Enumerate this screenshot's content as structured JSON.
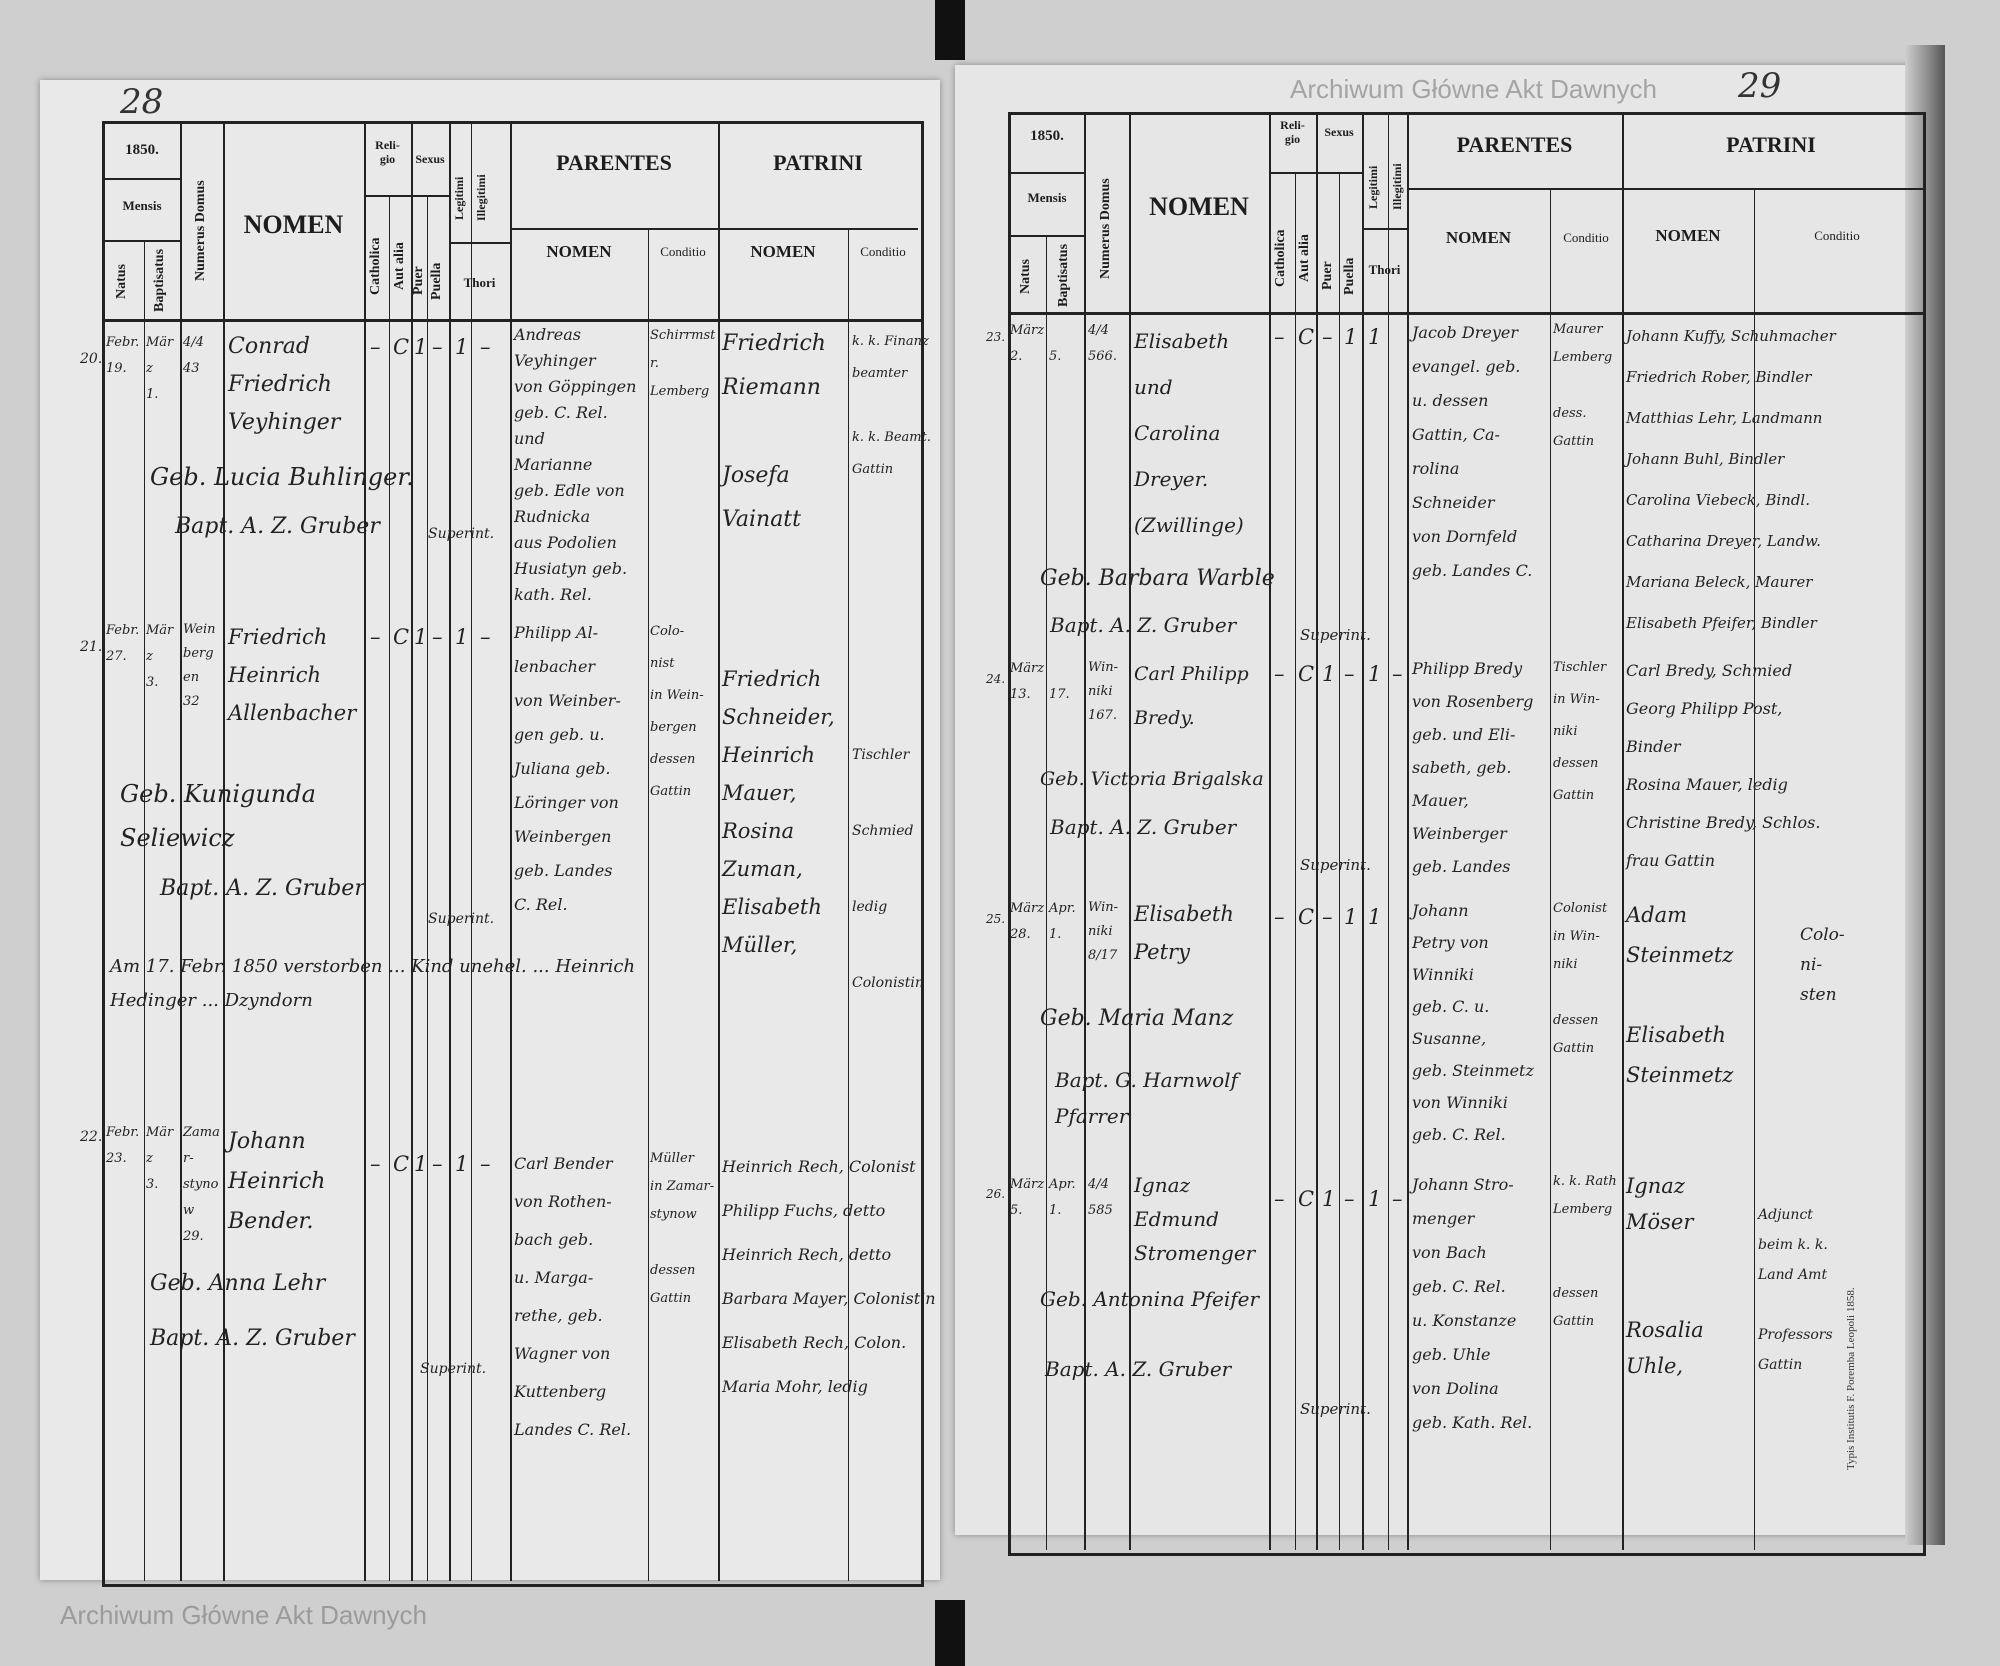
{
  "left_page": {
    "page_number": "28",
    "header": {
      "year": "1850.",
      "mensis": "Mensis",
      "natus": "Natus",
      "baptisatus": "Baptisatus",
      "numerus_domus": "Numerus Domus",
      "nomen": "NOMEN",
      "religio": "Reli-\ngio",
      "catholica": "Catholica",
      "aut_alia": "Aut alia",
      "sexus": "Sexus",
      "puer": "Puer",
      "puella": "Puella",
      "legitimi": "Legitimi",
      "illegitimi": "Illegitimi",
      "thori": "Thori",
      "parentes": "PARENTES",
      "parentes_nomen": "NOMEN",
      "parentes_conditio": "Conditio",
      "patrini": "PATRINI",
      "patrini_nomen": "NOMEN",
      "patrini_conditio": "Conditio"
    },
    "entries": [
      {
        "no": "20.",
        "natus": "Febr.\n19.",
        "baptisatus": "März\n1.",
        "domus": "4/4\n43",
        "nomen": "Conrad\nFriedrich\nVeyhinger",
        "catholica": "–",
        "aut_alia": "C",
        "puer": "1",
        "puella": "–",
        "legitimi": "1",
        "illegitimi": "–",
        "parentes_nomen": "Andreas\nVeyhinger\nvon Göppingen\ngeb. C. Rel.\nund\nMarianne\ngeb. Edle von\nRudnicka\naus Podolien\nHusiatyn geb.\nkath. Rel.",
        "parentes_conditio": "Schirrmstr.\nLemberg",
        "patrini_nomen": "Friedrich\nRiemann\n\nJosefa\nVainatt",
        "patrini_conditio": "k. k. Finanz\nbeamter\n\nk. k. Beamt.\nGattin",
        "obstetrix": "Geb. Lucia Buhlinger.",
        "baptizans": "Bapt. A. Z. Gruber",
        "signum": "Superint."
      },
      {
        "no": "21.",
        "natus": "Febr.\n27.",
        "baptisatus": "März\n3.",
        "domus": "Weinbergen\n32",
        "nomen": "Friedrich\nHeinrich\nAllenbacher",
        "catholica": "–",
        "aut_alia": "C",
        "puer": "1",
        "puella": "–",
        "legitimi": "1",
        "illegitimi": "–",
        "parentes_nomen": "Philipp Al-\nlenbacher\nvon Weinber-\ngen geb. u.\nJuliana geb.\nLöringer von\nWeinbergen\ngeb. Landes\nC. Rel.",
        "parentes_conditio": "Colo-\nnist\nin Wein-\nbergen\ndessen\nGattin",
        "patrini_nomen": "Friedrich\nSchneider,\nHeinrich\nMauer,\nRosina\nZuman,\nElisabeth\nMüller,",
        "patrini_conditio": "\n\nTischler\n\nSchmied\n\nledig\n\nColonistin",
        "obstetrix": "Geb. Kunigunda\nSeliewicz",
        "baptizans": "Bapt. A. Z. Gruber",
        "signum": "Superint."
      },
      {
        "no": "22.",
        "natus": "Febr.\n23.",
        "baptisatus": "März\n3.",
        "domus": "Zamar-\nstynow\n29.",
        "nomen": "Johann\nHeinrich\nBender.",
        "catholica": "–",
        "aut_alia": "C",
        "puer": "1",
        "puella": "–",
        "legitimi": "1",
        "illegitimi": "–",
        "parentes_nomen": "Carl Bender\nvon Rothen-\nbach geb.\nu. Marga-\nrethe, geb.\nWagner von\nKuttenberg\nLandes C. Rel.",
        "parentes_conditio": "Müller\nin Zamar-\nstynow\n\ndessen\nGattin",
        "patrini_nomen": "Heinrich Rech, Colonist\nPhilipp Fuchs, detto\nHeinrich Rech, detto\nBarbara Mayer, Colonistin\nElisabeth Rech, Colon.\nMaria Mohr, ledig",
        "patrini_conditio": "",
        "obstetrix": "Geb. Anna Lehr",
        "baptizans": "Bapt. A. Z. Gruber",
        "signum": "Superint."
      }
    ],
    "note": "Am 17. Febr. 1850 verstorben ... Kind unehel. ... Heinrich Hedinger ... Dzyndorn",
    "watermark": "Archiwum Główne Akt Dawnych"
  },
  "right_page": {
    "page_number": "29",
    "header": {
      "year": "1850.",
      "mensis": "Mensis",
      "natus": "Natus",
      "baptisatus": "Baptisatus",
      "numerus_domus": "Numerus Domus",
      "nomen": "NOMEN",
      "religio": "Reli-\ngio",
      "catholica": "Catholica",
      "aut_alia": "Aut alia",
      "sexus": "Sexus",
      "puer": "Puer",
      "puella": "Puella",
      "legitimi": "Legitimi",
      "illegitimi": "Illegitimi",
      "thori": "Thori",
      "parentes": "PARENTES",
      "parentes_nomen": "NOMEN",
      "parentes_conditio": "Conditio",
      "patrini": "PATRINI",
      "patrini_nomen": "NOMEN",
      "patrini_conditio": "Conditio"
    },
    "entries": [
      {
        "no": "23.",
        "natus": "März\n2.",
        "baptisatus": "\n5.",
        "domus": "4/4\n566.",
        "nomen": "Elisabeth\nund\nCarolina\nDreyer.\n(Zwillinge)",
        "catholica": "–",
        "aut_alia": "C",
        "puer": "–",
        "puella": "1",
        "legitimi": "1",
        "illegitimi": "",
        "parentes_nomen": "Jacob Dreyer\nevangel. geb.\nu. dessen\nGattin, Ca-\nrolina\nSchneider\nvon Dornfeld\ngeb. Landes C.",
        "parentes_conditio": "Maurer\nLemberg\n\ndess.\nGattin",
        "patrini_nomen": "Johann Kuffy, Schuhmacher\nFriedrich Rober, Bindler\nMatthias Lehr, Landmann\nJohann Buhl, Bindler\nCarolina Viebeck, Bindl.\nCatharina Dreyer, Landw.\nMariana Beleck, Maurer\nElisabeth Pfeifer, Bindler",
        "patrini_conditio": "",
        "obstetrix": "Geb. Barbara Warble",
        "baptizans": "Bapt. A. Z. Gruber",
        "signum": "Superint."
      },
      {
        "no": "24.",
        "natus": "März\n13.",
        "baptisatus": "\n17.",
        "domus": "Win-\nniki\n167.",
        "nomen": "Carl Philipp\nBredy.",
        "catholica": "–",
        "aut_alia": "C",
        "puer": "1",
        "puella": "–",
        "legitimi": "1",
        "illegitimi": "–",
        "parentes_nomen": "Philipp Bredy\nvon Rosenberg\ngeb. und Eli-\nsabeth, geb.\nMauer,\nWeinberger\ngeb. Landes",
        "parentes_conditio": "Tischler\nin Win-\nniki\ndessen\nGattin",
        "patrini_nomen": "Carl Bredy, Schmied\nGeorg Philipp Post,\nBinder\nRosina Mauer, ledig\nChristine Bredy, Schlos.\nfrau Gattin",
        "patrini_conditio": "",
        "obstetrix": "Geb. Victoria Brigalska",
        "baptizans": "Bapt. A. Z. Gruber",
        "signum": "Superint."
      },
      {
        "no": "25.",
        "natus": "März\n28.",
        "baptisatus": "Apr.\n1.",
        "domus": "Win-\nniki\n8/17",
        "nomen": "Elisabeth\nPetry",
        "catholica": "–",
        "aut_alia": "C",
        "puer": "–",
        "puella": "1",
        "legitimi": "1",
        "illegitimi": "",
        "parentes_nomen": "Johann\nPetry von\nWinniki\ngeb. C. u.\nSusanne,\ngeb. Steinmetz\nvon Winniki\ngeb. C. Rel.",
        "parentes_conditio": "Colonist\nin Win-\nniki\n\ndessen\nGattin",
        "patrini_nomen": "Adam\nSteinmetz\n\nElisabeth\nSteinmetz",
        "patrini_conditio": "Colo-\nni-\nsten",
        "obstetrix": "Geb. Maria Manz",
        "baptizans": "Bapt. G. Harnwolf\nPfarrer",
        "signum": ""
      },
      {
        "no": "26.",
        "natus": "März\n5.",
        "baptisatus": "Apr.\n1.",
        "domus": "4/4\n585",
        "nomen": "Ignaz\nEdmund\nStromenger",
        "catholica": "–",
        "aut_alia": "C",
        "puer": "1",
        "puella": "–",
        "legitimi": "1",
        "illegitimi": "–",
        "parentes_nomen": "Johann Stro-\nmenger\nvon Bach\ngeb. C. Rel.\nu. Konstanze\ngeb. Uhle\nvon Dolina\ngeb. Kath. Rel.",
        "parentes_conditio": "k. k. Rath\nLemberg\n\n\ndessen\nGattin",
        "patrini_nomen": "Ignaz\nMöser\n\n\nRosalia\nUhle,",
        "patrini_conditio": "Adjunct\nbeim k. k.\nLand Amt\n\nProfessors\nGattin",
        "obstetrix": "Geb. Antonina Pfeifer",
        "baptizans": "Bapt. A. Z. Gruber",
        "signum": "Superint."
      }
    ],
    "watermark": "Archiwum Główne Akt Dawnych",
    "printer": "Typis Institutis F. Poremba Leopoli 1858."
  },
  "colors": {
    "paper": "#e9e9e9",
    "ink": "#222222",
    "background": "#2a2a2a"
  }
}
